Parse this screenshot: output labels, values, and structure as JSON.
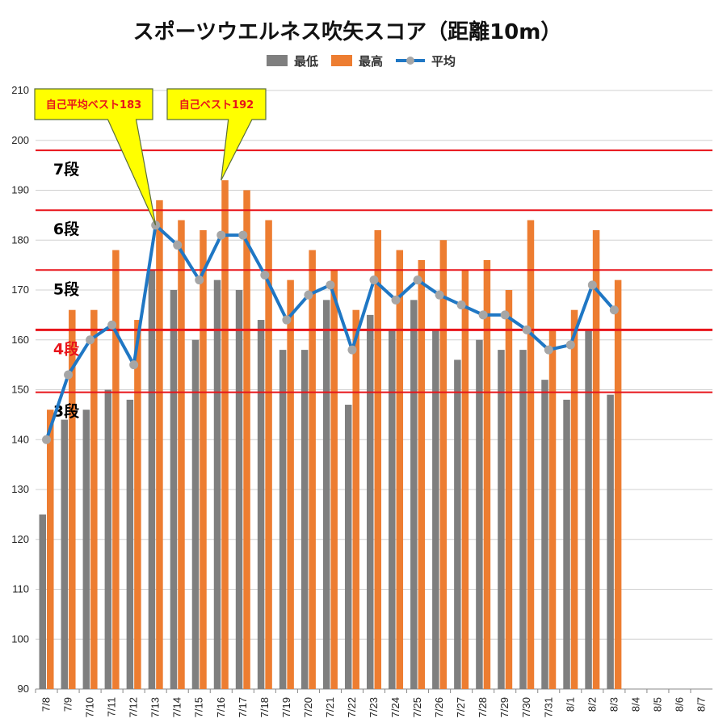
{
  "chart_data": {
    "type": "bar",
    "title": "スポーツウエルネス吹矢スコア（距離10m）",
    "categories": [
      "7/8",
      "7/9",
      "7/10",
      "7/11",
      "7/12",
      "7/13",
      "7/14",
      "7/15",
      "7/16",
      "7/17",
      "7/18",
      "7/19",
      "7/20",
      "7/21",
      "7/22",
      "7/23",
      "7/24",
      "7/25",
      "7/26",
      "7/27",
      "7/28",
      "7/29",
      "7/30",
      "7/31",
      "8/1",
      "8/2",
      "8/3",
      "8/4",
      "8/5",
      "8/6",
      "8/7"
    ],
    "series": [
      {
        "name": "最低",
        "type": "bar",
        "color": "#7f7f7f",
        "values": [
          125,
          144,
          146,
          150,
          148,
          174,
          170,
          160,
          172,
          170,
          164,
          158,
          158,
          168,
          147,
          165,
          162,
          168,
          162,
          156,
          160,
          158,
          158,
          152,
          148,
          162,
          149,
          null,
          null,
          null,
          null
        ]
      },
      {
        "name": "最高",
        "type": "bar",
        "color": "#ed7d31",
        "values": [
          146,
          166,
          166,
          178,
          164,
          188,
          184,
          182,
          192,
          190,
          184,
          172,
          178,
          174,
          166,
          182,
          178,
          176,
          180,
          174,
          176,
          170,
          184,
          162,
          166,
          182,
          172,
          null,
          null,
          null,
          null
        ]
      },
      {
        "name": "平均",
        "type": "line",
        "color": "#1f77c4",
        "marker_color": "#a6a6a6",
        "values": [
          140,
          153,
          160,
          163,
          155,
          183,
          179,
          172,
          181,
          181,
          173,
          164,
          169,
          171,
          158,
          172,
          168,
          172,
          169,
          167,
          165,
          165,
          162,
          158,
          159,
          171,
          166,
          null,
          null,
          null,
          null
        ]
      }
    ],
    "ylim": [
      90,
      210
    ],
    "yticks": [
      90,
      100,
      110,
      120,
      130,
      140,
      150,
      160,
      170,
      180,
      190,
      200,
      210
    ],
    "grid": true,
    "legend_position": "top",
    "thresholds": [
      {
        "label": "7段",
        "value": 198,
        "label_color": "#000000"
      },
      {
        "label": "6段",
        "value": 186,
        "label_color": "#000000"
      },
      {
        "label": "5段",
        "value": 174,
        "label_color": "#000000"
      },
      {
        "label": "4段",
        "value": 162,
        "label_color": "#e8141b"
      },
      {
        "label": "3段",
        "value": 149.5,
        "label_color": "#000000"
      }
    ],
    "annotations": [
      {
        "text": "自己平均ベスト183",
        "category": "7/13",
        "value": 183
      },
      {
        "text": "自己ベスト192",
        "category": "7/16",
        "value": 192
      }
    ],
    "threshold_color": "#e8141b",
    "callout_fill": "#ffff00"
  }
}
